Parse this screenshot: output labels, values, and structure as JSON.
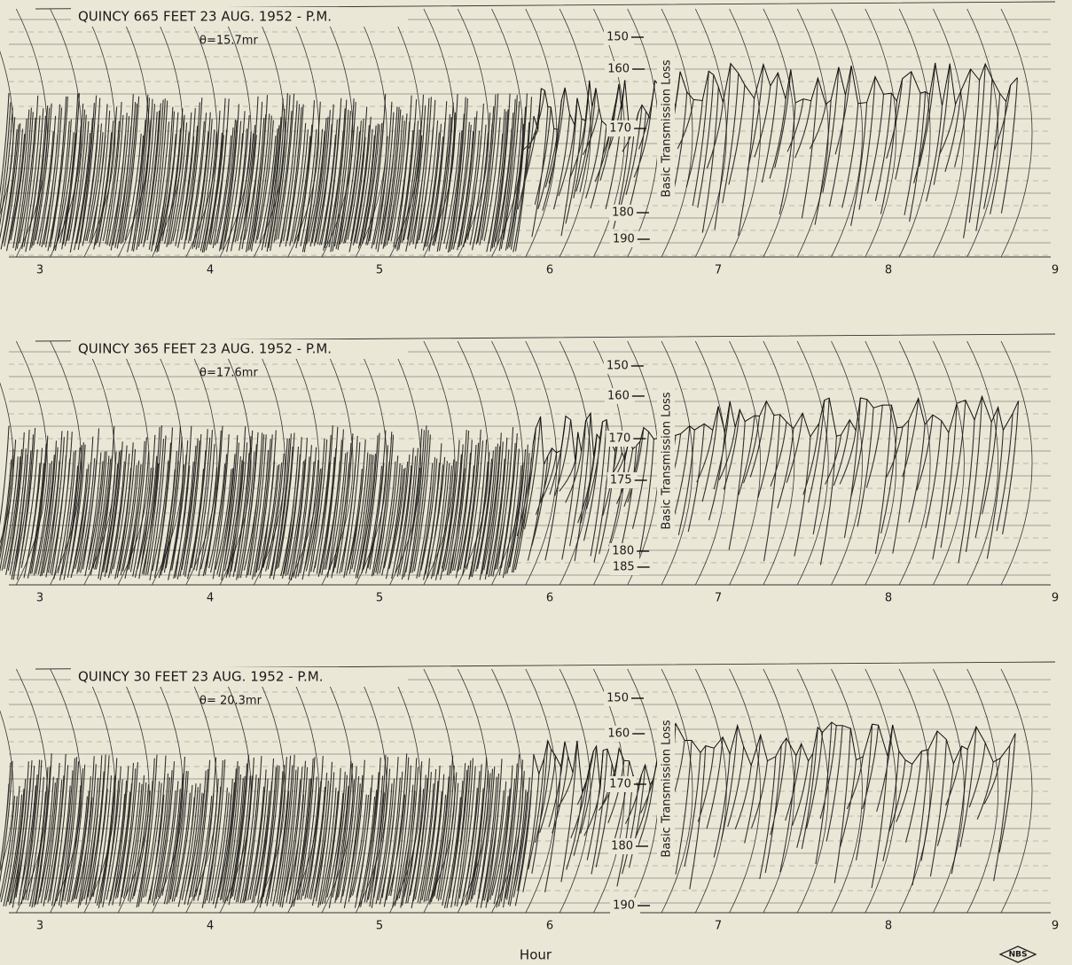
{
  "panels": [
    {
      "title": "QUINCY   665 FEET   23 AUG. 1952 - P.M.",
      "angle": "θ=15.7mr",
      "y_axis_label": "Basic Transmission Loss",
      "y_ticks": [
        "150",
        "160",
        "170",
        "180",
        "190"
      ],
      "x_ticks": [
        "3",
        "4",
        "5",
        "6",
        "7",
        "8",
        "9"
      ]
    },
    {
      "title": "QUINCY   365 FEET   23 AUG. 1952 - P.M.",
      "angle": "θ=17.6mr",
      "y_axis_label": "Basic Transmission Loss",
      "y_ticks": [
        "150",
        "160",
        "170",
        "175",
        "180",
        "185"
      ],
      "x_ticks": [
        "3",
        "4",
        "5",
        "6",
        "7",
        "8",
        "9"
      ]
    },
    {
      "title": "QUINCY   30 FEET   23 AUG. 1952 - P.M.",
      "angle": "θ= 20.3mr",
      "y_axis_label": "Basic Transmission Loss",
      "y_ticks": [
        "150",
        "160",
        "170",
        "180",
        "190"
      ],
      "x_ticks": [
        "3",
        "4",
        "5",
        "6",
        "7",
        "8",
        "9"
      ]
    }
  ],
  "x_axis_label": "Hour",
  "logo": "NBS"
}
